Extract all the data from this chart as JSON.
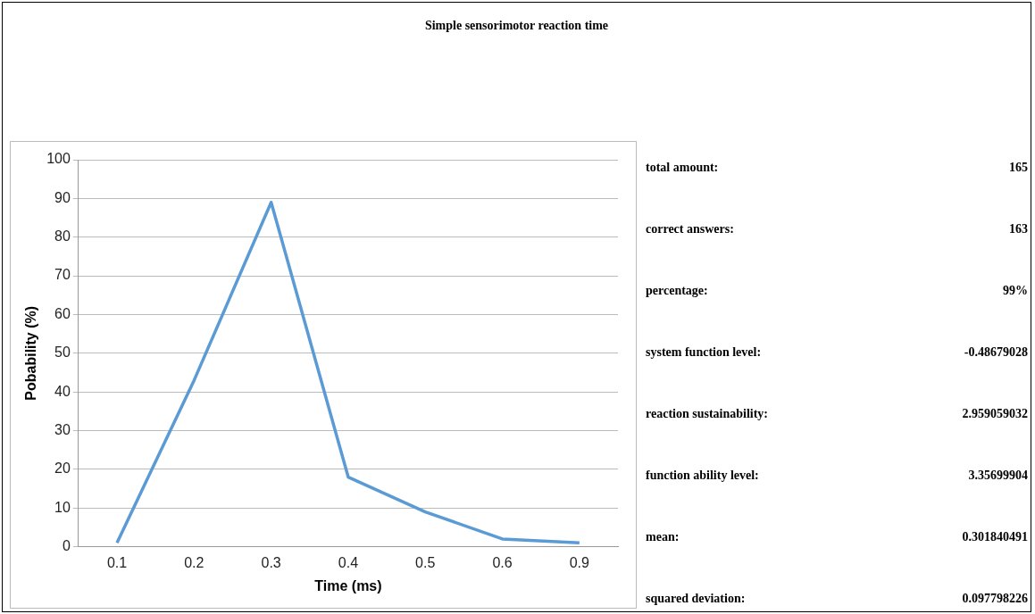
{
  "chart_data": [
    {
      "type": "line",
      "title": "Simple sensorimotor reaction time",
      "xlabel": "Time (ms)",
      "ylabel": "Pobability (%)",
      "categories": [
        "0.1",
        "0.2",
        "0.3",
        "0.4",
        "0.5",
        "0.6",
        "0.9"
      ],
      "series": [
        {
          "color": "#5b9bd5",
          "values": [
            1,
            43,
            89,
            18,
            9,
            2,
            1
          ]
        }
      ],
      "ylim": [
        0,
        100
      ],
      "yticks": [
        0,
        10,
        20,
        30,
        40,
        50,
        60,
        70,
        80,
        90,
        100
      ],
      "grid": "y",
      "marker": "none",
      "line_style": "solid"
    },
    {
      "type": "other",
      "annotations": [
        "total amount:",
        "165",
        "correct answers:",
        "163",
        "percentage:",
        "99%",
        "system function level:",
        "-0.48679028",
        "reaction sustainability:",
        "2.959059032",
        "function ability level:",
        "3.35699904",
        "mean:",
        "0.301840491",
        "squared deviation:",
        "0.097798226"
      ]
    }
  ]
}
